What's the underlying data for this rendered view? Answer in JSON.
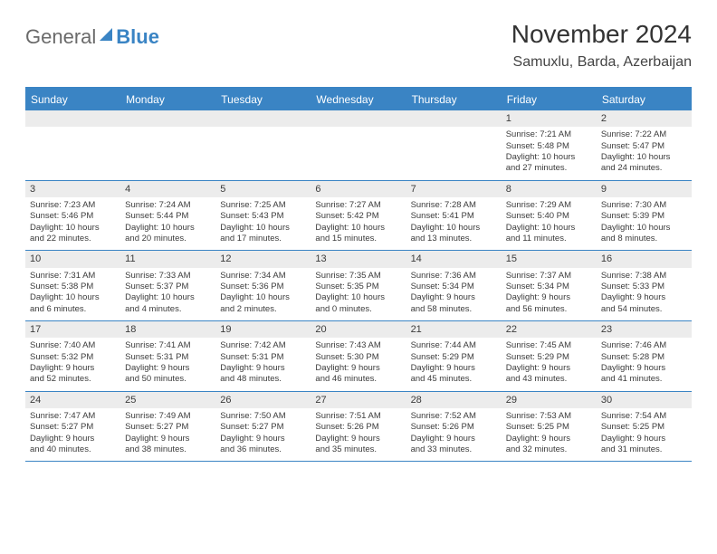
{
  "logo": {
    "general": "General",
    "blue": "Blue"
  },
  "title": "November 2024",
  "location": "Samuxlu, Barda, Azerbaijan",
  "colors": {
    "brand": "#3a84c4",
    "header_bg": "#3a84c4",
    "header_text": "#ffffff",
    "daynum_bg": "#ececec",
    "text": "#3b3b3b",
    "border": "#3a84c4"
  },
  "day_names": [
    "Sunday",
    "Monday",
    "Tuesday",
    "Wednesday",
    "Thursday",
    "Friday",
    "Saturday"
  ],
  "weeks": [
    [
      {
        "empty": true
      },
      {
        "empty": true
      },
      {
        "empty": true
      },
      {
        "empty": true
      },
      {
        "empty": true
      },
      {
        "day": "1",
        "sunrise": "Sunrise: 7:21 AM",
        "sunset": "Sunset: 5:48 PM",
        "dl1": "Daylight: 10 hours",
        "dl2": "and 27 minutes."
      },
      {
        "day": "2",
        "sunrise": "Sunrise: 7:22 AM",
        "sunset": "Sunset: 5:47 PM",
        "dl1": "Daylight: 10 hours",
        "dl2": "and 24 minutes."
      }
    ],
    [
      {
        "day": "3",
        "sunrise": "Sunrise: 7:23 AM",
        "sunset": "Sunset: 5:46 PM",
        "dl1": "Daylight: 10 hours",
        "dl2": "and 22 minutes."
      },
      {
        "day": "4",
        "sunrise": "Sunrise: 7:24 AM",
        "sunset": "Sunset: 5:44 PM",
        "dl1": "Daylight: 10 hours",
        "dl2": "and 20 minutes."
      },
      {
        "day": "5",
        "sunrise": "Sunrise: 7:25 AM",
        "sunset": "Sunset: 5:43 PM",
        "dl1": "Daylight: 10 hours",
        "dl2": "and 17 minutes."
      },
      {
        "day": "6",
        "sunrise": "Sunrise: 7:27 AM",
        "sunset": "Sunset: 5:42 PM",
        "dl1": "Daylight: 10 hours",
        "dl2": "and 15 minutes."
      },
      {
        "day": "7",
        "sunrise": "Sunrise: 7:28 AM",
        "sunset": "Sunset: 5:41 PM",
        "dl1": "Daylight: 10 hours",
        "dl2": "and 13 minutes."
      },
      {
        "day": "8",
        "sunrise": "Sunrise: 7:29 AM",
        "sunset": "Sunset: 5:40 PM",
        "dl1": "Daylight: 10 hours",
        "dl2": "and 11 minutes."
      },
      {
        "day": "9",
        "sunrise": "Sunrise: 7:30 AM",
        "sunset": "Sunset: 5:39 PM",
        "dl1": "Daylight: 10 hours",
        "dl2": "and 8 minutes."
      }
    ],
    [
      {
        "day": "10",
        "sunrise": "Sunrise: 7:31 AM",
        "sunset": "Sunset: 5:38 PM",
        "dl1": "Daylight: 10 hours",
        "dl2": "and 6 minutes."
      },
      {
        "day": "11",
        "sunrise": "Sunrise: 7:33 AM",
        "sunset": "Sunset: 5:37 PM",
        "dl1": "Daylight: 10 hours",
        "dl2": "and 4 minutes."
      },
      {
        "day": "12",
        "sunrise": "Sunrise: 7:34 AM",
        "sunset": "Sunset: 5:36 PM",
        "dl1": "Daylight: 10 hours",
        "dl2": "and 2 minutes."
      },
      {
        "day": "13",
        "sunrise": "Sunrise: 7:35 AM",
        "sunset": "Sunset: 5:35 PM",
        "dl1": "Daylight: 10 hours",
        "dl2": "and 0 minutes."
      },
      {
        "day": "14",
        "sunrise": "Sunrise: 7:36 AM",
        "sunset": "Sunset: 5:34 PM",
        "dl1": "Daylight: 9 hours",
        "dl2": "and 58 minutes."
      },
      {
        "day": "15",
        "sunrise": "Sunrise: 7:37 AM",
        "sunset": "Sunset: 5:34 PM",
        "dl1": "Daylight: 9 hours",
        "dl2": "and 56 minutes."
      },
      {
        "day": "16",
        "sunrise": "Sunrise: 7:38 AM",
        "sunset": "Sunset: 5:33 PM",
        "dl1": "Daylight: 9 hours",
        "dl2": "and 54 minutes."
      }
    ],
    [
      {
        "day": "17",
        "sunrise": "Sunrise: 7:40 AM",
        "sunset": "Sunset: 5:32 PM",
        "dl1": "Daylight: 9 hours",
        "dl2": "and 52 minutes."
      },
      {
        "day": "18",
        "sunrise": "Sunrise: 7:41 AM",
        "sunset": "Sunset: 5:31 PM",
        "dl1": "Daylight: 9 hours",
        "dl2": "and 50 minutes."
      },
      {
        "day": "19",
        "sunrise": "Sunrise: 7:42 AM",
        "sunset": "Sunset: 5:31 PM",
        "dl1": "Daylight: 9 hours",
        "dl2": "and 48 minutes."
      },
      {
        "day": "20",
        "sunrise": "Sunrise: 7:43 AM",
        "sunset": "Sunset: 5:30 PM",
        "dl1": "Daylight: 9 hours",
        "dl2": "and 46 minutes."
      },
      {
        "day": "21",
        "sunrise": "Sunrise: 7:44 AM",
        "sunset": "Sunset: 5:29 PM",
        "dl1": "Daylight: 9 hours",
        "dl2": "and 45 minutes."
      },
      {
        "day": "22",
        "sunrise": "Sunrise: 7:45 AM",
        "sunset": "Sunset: 5:29 PM",
        "dl1": "Daylight: 9 hours",
        "dl2": "and 43 minutes."
      },
      {
        "day": "23",
        "sunrise": "Sunrise: 7:46 AM",
        "sunset": "Sunset: 5:28 PM",
        "dl1": "Daylight: 9 hours",
        "dl2": "and 41 minutes."
      }
    ],
    [
      {
        "day": "24",
        "sunrise": "Sunrise: 7:47 AM",
        "sunset": "Sunset: 5:27 PM",
        "dl1": "Daylight: 9 hours",
        "dl2": "and 40 minutes."
      },
      {
        "day": "25",
        "sunrise": "Sunrise: 7:49 AM",
        "sunset": "Sunset: 5:27 PM",
        "dl1": "Daylight: 9 hours",
        "dl2": "and 38 minutes."
      },
      {
        "day": "26",
        "sunrise": "Sunrise: 7:50 AM",
        "sunset": "Sunset: 5:27 PM",
        "dl1": "Daylight: 9 hours",
        "dl2": "and 36 minutes."
      },
      {
        "day": "27",
        "sunrise": "Sunrise: 7:51 AM",
        "sunset": "Sunset: 5:26 PM",
        "dl1": "Daylight: 9 hours",
        "dl2": "and 35 minutes."
      },
      {
        "day": "28",
        "sunrise": "Sunrise: 7:52 AM",
        "sunset": "Sunset: 5:26 PM",
        "dl1": "Daylight: 9 hours",
        "dl2": "and 33 minutes."
      },
      {
        "day": "29",
        "sunrise": "Sunrise: 7:53 AM",
        "sunset": "Sunset: 5:25 PM",
        "dl1": "Daylight: 9 hours",
        "dl2": "and 32 minutes."
      },
      {
        "day": "30",
        "sunrise": "Sunrise: 7:54 AM",
        "sunset": "Sunset: 5:25 PM",
        "dl1": "Daylight: 9 hours",
        "dl2": "and 31 minutes."
      }
    ]
  ]
}
